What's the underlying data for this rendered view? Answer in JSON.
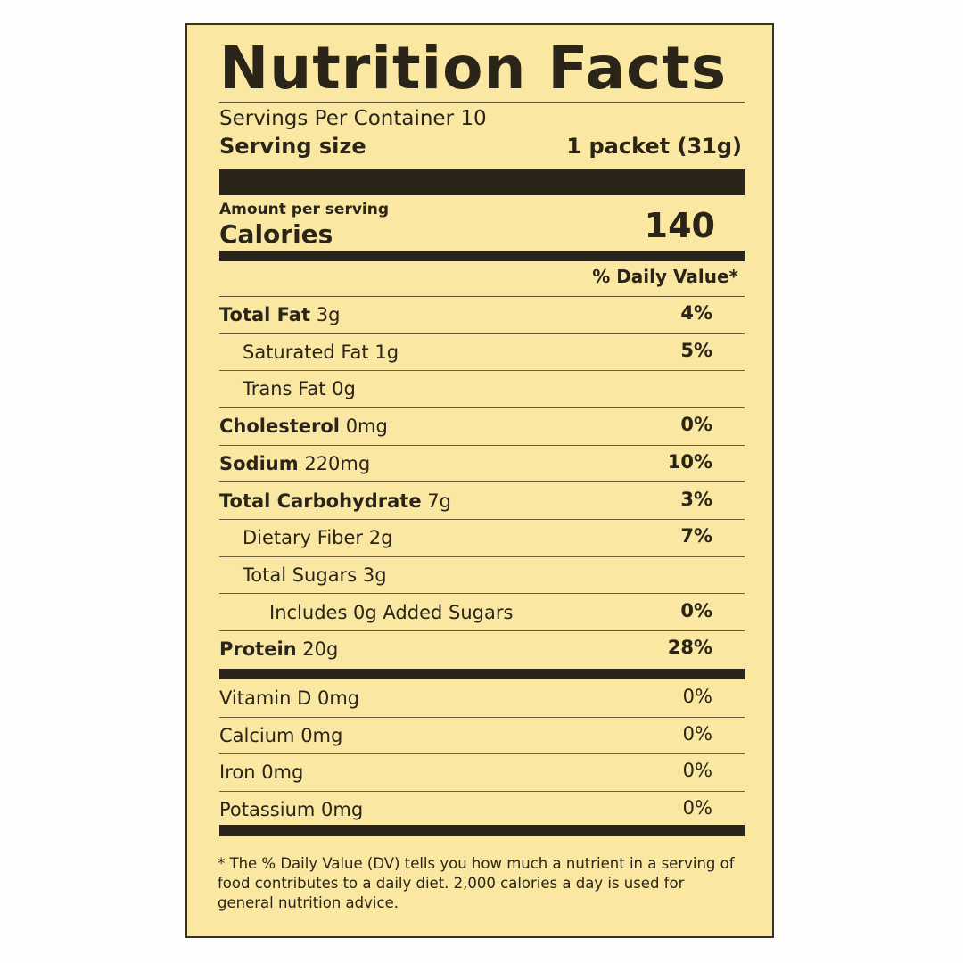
{
  "title": "Nutrition Facts",
  "servings_per_container": "Servings Per Container 10",
  "serving_size_label": "Serving size",
  "serving_size_value": "1 packet (31g)",
  "amount_per_serving": "Amount per serving",
  "calories_label": "Calories",
  "calories_value": "140",
  "daily_value_header": "% Daily Value*",
  "nutrients": [
    {
      "name": "Total Fat",
      "amount": "3g",
      "dv": "4%",
      "bold": true,
      "indent": 0
    },
    {
      "name": "Saturated Fat",
      "amount": "1g",
      "dv": "5%",
      "bold": false,
      "indent": 1
    },
    {
      "name": "Trans Fat",
      "amount": "0g",
      "dv": "",
      "bold": false,
      "indent": 1
    },
    {
      "name": "Cholesterol",
      "amount": "0mg",
      "dv": "0%",
      "bold": true,
      "indent": 0
    },
    {
      "name": "Sodium",
      "amount": "220mg",
      "dv": "10%",
      "bold": true,
      "indent": 0
    },
    {
      "name": "Total Carbohydrate",
      "amount": "7g",
      "dv": "3%",
      "bold": true,
      "indent": 0
    },
    {
      "name": "Dietary Fiber",
      "amount": "2g",
      "dv": "7%",
      "bold": false,
      "indent": 1
    },
    {
      "name": "Total Sugars",
      "amount": "3g",
      "dv": "",
      "bold": false,
      "indent": 1
    },
    {
      "name": "Includes 0g Added Sugars",
      "amount": "",
      "dv": "0%",
      "bold": false,
      "indent": 2
    },
    {
      "name": "Protein",
      "amount": "20g",
      "dv": "28%",
      "bold": true,
      "indent": 0
    }
  ],
  "vitamins": [
    {
      "name": "Vitamin D 0mg",
      "dv": "0%"
    },
    {
      "name": "Calcium 0mg",
      "dv": "0%"
    },
    {
      "name": "Iron 0mg",
      "dv": "0%"
    },
    {
      "name": "Potassium 0mg",
      "dv": "0%"
    }
  ],
  "footnote": "* The % Daily Value (DV) tells you how much a nutrient in a serving of food contributes to a daily diet. 2,000 calories a day is used for general nutrition advice.",
  "colors": {
    "background": "#f9e7a2",
    "ink": "#2b2418"
  }
}
